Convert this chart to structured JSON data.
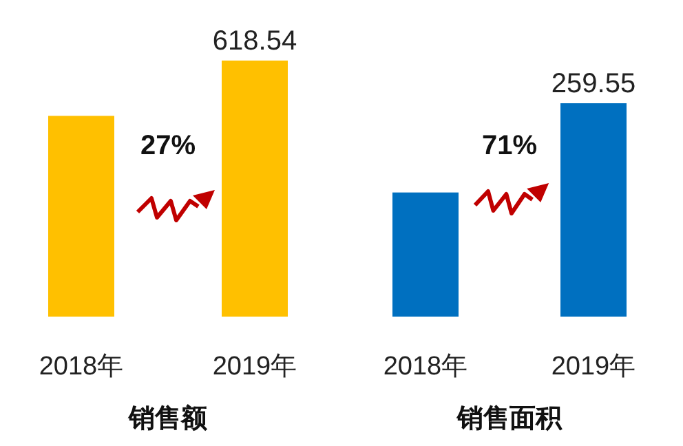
{
  "chart_data": [
    {
      "type": "bar",
      "xlabel": "销售额",
      "categories": [
        "2018年",
        "2019年"
      ],
      "values": [
        485,
        618.54
      ],
      "value_labels": [
        null,
        "618.54"
      ],
      "color": "#ffc000",
      "annotations": [
        "27%"
      ]
    },
    {
      "type": "bar",
      "xlabel": "销售面积",
      "categories": [
        "2018年",
        "2019年"
      ],
      "values": [
        151,
        259.55
      ],
      "value_labels": [
        null,
        "259.55"
      ],
      "color": "#0070c0",
      "annotations": [
        "71%"
      ]
    }
  ]
}
